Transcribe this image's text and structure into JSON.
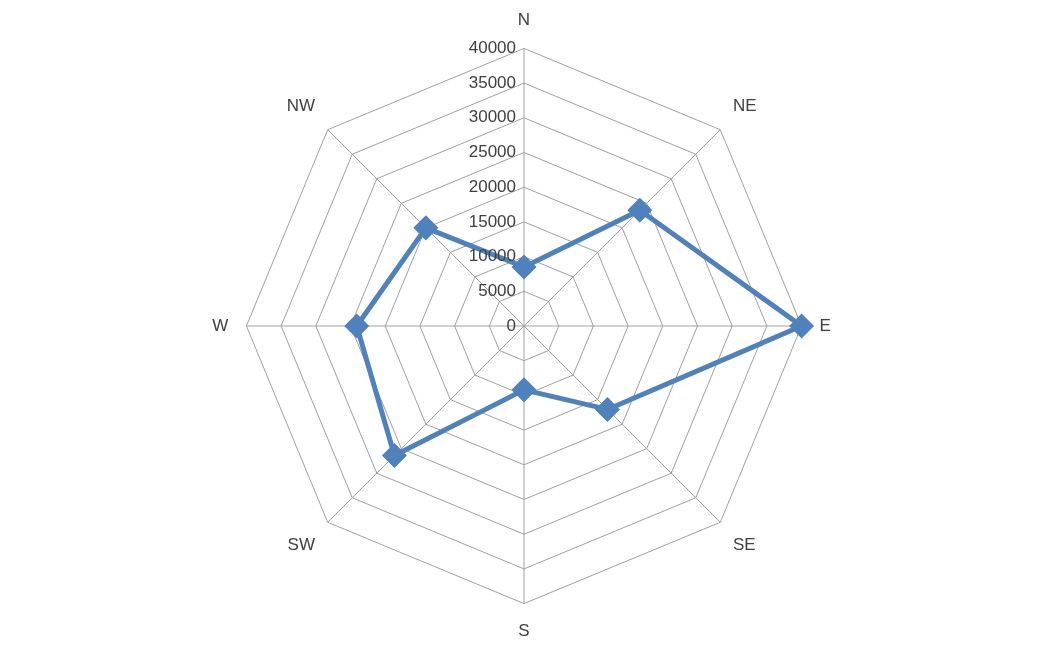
{
  "chart_data": {
    "type": "radar",
    "categories": [
      "N",
      "NE",
      "E",
      "SE",
      "S",
      "SW",
      "W",
      "NW"
    ],
    "series": [
      {
        "color": "#4f81bd",
        "values": [
          8500,
          23600,
          40000,
          17000,
          9200,
          26400,
          24100,
          20000
        ]
      }
    ],
    "ylim": [
      0,
      40000
    ],
    "yticks": [
      0,
      5000,
      10000,
      15000,
      20000,
      25000,
      30000,
      35000,
      40000
    ],
    "grid": true,
    "legend": false,
    "marker": "diamond",
    "line_style": "solid"
  }
}
